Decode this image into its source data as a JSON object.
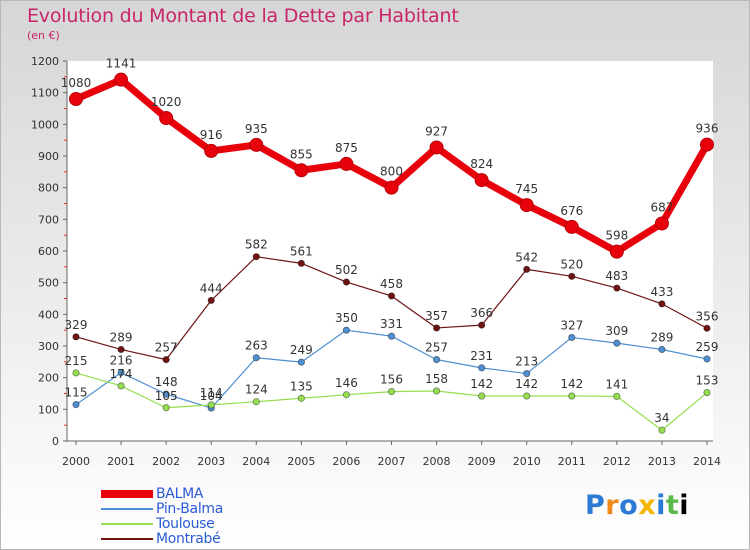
{
  "header": {
    "title": "Evolution du Montant de la Dette par Habitant",
    "subtitle": "(en €)"
  },
  "logo": {
    "text": "Proxiti"
  },
  "chart_data": {
    "type": "line",
    "title": "Evolution du Montant de la Dette par Habitant",
    "subtitle": "(en €)",
    "xlabel": "",
    "ylabel": "",
    "ylim": [
      0,
      1200
    ],
    "yticks": [
      0,
      100,
      200,
      300,
      400,
      500,
      600,
      700,
      800,
      900,
      1000,
      1100,
      1200
    ],
    "grid": false,
    "legend_position": "bottom-left",
    "x": [
      "2000",
      "2001",
      "2002",
      "2003",
      "2004",
      "2005",
      "2006",
      "2007",
      "2008",
      "2009",
      "2010",
      "2011",
      "2012",
      "2013",
      "2014"
    ],
    "series": [
      {
        "name": "BALMA",
        "color": "#e8000b",
        "values": [
          1080,
          1141,
          1020,
          916,
          935,
          855,
          875,
          800,
          927,
          824,
          745,
          676,
          598,
          687,
          936
        ],
        "labels": [
          "1080",
          "1141",
          "1020",
          "916",
          "935",
          "855",
          "875",
          "800",
          "927",
          "824",
          "745",
          "676",
          "598",
          "687",
          "936"
        ]
      },
      {
        "name": "Pin-Balma",
        "color": "#4f8fd0",
        "values": [
          115,
          216,
          148,
          104,
          263,
          249,
          350,
          331,
          257,
          231,
          213,
          327,
          309,
          289,
          259
        ],
        "labels": [
          "115",
          "216",
          "148",
          "104",
          "263",
          "249",
          "350",
          "331",
          "257",
          "231",
          "213",
          "327",
          "309",
          "289",
          "259"
        ]
      },
      {
        "name": "Toulouse",
        "color": "#96dd52",
        "values": [
          215,
          174,
          105,
          114,
          124,
          135,
          146,
          156,
          158,
          142,
          142,
          142,
          141,
          34,
          153
        ],
        "labels": [
          "215",
          "174",
          "105",
          "114",
          "124",
          "135",
          "146",
          "156",
          "158",
          "142",
          "142",
          "142",
          "141",
          "34",
          "153"
        ]
      },
      {
        "name": "Montrabé",
        "color": "#6e1414",
        "values": [
          329,
          289,
          257,
          444,
          582,
          561,
          502,
          458,
          357,
          366,
          542,
          520,
          483,
          433,
          356
        ],
        "labels": [
          "329",
          "289",
          "257",
          "444",
          "582",
          "561",
          "502",
          "458",
          "357",
          "366",
          "542",
          "520",
          "483",
          "433",
          "356"
        ]
      }
    ]
  }
}
